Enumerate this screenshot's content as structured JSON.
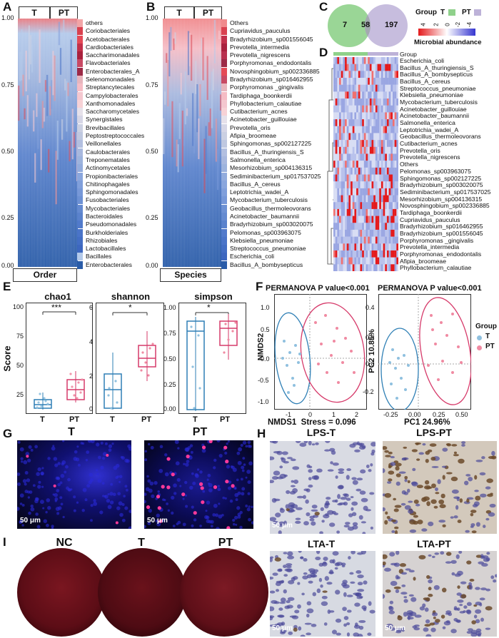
{
  "panels": {
    "A": "A",
    "B": "B",
    "C": "C",
    "D": "D",
    "E": "E",
    "F": "F",
    "G": "G",
    "H": "H",
    "I": "I"
  },
  "stack_axis_ticks": [
    "1.00",
    "0.75",
    "0.50",
    "0.25",
    "0.00"
  ],
  "group_headers": {
    "t": "T",
    "pt": "PT"
  },
  "panel_a": {
    "bottom_label": "Order",
    "legend": [
      "others",
      "Coriobacteriales",
      "Acetobacterales",
      "Cardiobacteriales",
      "Saccharimonadales",
      "Flavobacteriales",
      "Enterobacterales_A",
      "Selenomonadales",
      "Streptancytecales",
      "Campylobacterales",
      "Xanthomonadales",
      "Saccharomycetales",
      "Synergistales",
      "Brevibacillales",
      "Peptostreptococcales",
      "Veillonellales",
      "Caulobacterales",
      "Treponematales",
      "Actinomycetales",
      "Propionibacteriales",
      "Chitinophagales",
      "Sphingomonadales",
      "Fusobacteriales",
      "Mycobacteriales",
      "Bacteroidales",
      "Pseudomonadales",
      "Burkholderiales",
      "Rhizobiales",
      "Lactobacillales",
      "Bacillales",
      "Enterobacterales"
    ],
    "legend_colors": [
      "#f2a5a7",
      "#d9414f",
      "#e44a57",
      "#c2304a",
      "#a9213d",
      "#c84a64",
      "#9c2a47",
      "#e7b5bd",
      "#f5bcc5",
      "#f4c7cf",
      "#f7d2d6",
      "#e6e1ea",
      "#d6d6e6",
      "#cbd0e2",
      "#bfc8e0",
      "#b2bfe0",
      "#a8b8de",
      "#9db3dd",
      "#93acdd",
      "#8aa6dd",
      "#809fdb",
      "#7798d8",
      "#6d91d4",
      "#648ad0",
      "#5a82cc",
      "#517acb",
      "#4a74c8",
      "#436ec4",
      "#3d67bf",
      "#b3c9ea",
      "#2a5ca8"
    ]
  },
  "panel_b": {
    "bottom_label": "Species",
    "legend": [
      "Others",
      "Cupriavidus_pauculus",
      "Bradyrhizobium_sp001556045",
      "Prevotella_intermedia",
      "Prevotella_nigrescens",
      "Porphyromonas_endodontalis",
      "Novosphingobium_sp002336885",
      "Bradyrhizobium_sp016462955",
      "Porphyromonas _gingivalis",
      "Tardiphaga_boonkerdii",
      "Phyllobacterium_calautiae",
      "Cutibacterium_acnes",
      "Acinetobacter_guillouiae",
      "Prevotella_oris",
      "Afipia_broomeae",
      "Sphingomonas_sp002127225",
      "Bacillus_A_thuringiensis_S",
      "Salmonella_enterica",
      "Mesorhizobium_sp004136315",
      "Sediminibacterium_sp017537025",
      "Bacillus_A_cereus",
      "Leptotrichia_wadei_A",
      "Mycobacterium_tuberculosis",
      "Geobacillus_thermoleovorans",
      "Acinetobacter_baumannii",
      "Bradyrhizobium_sp003020075",
      "Pelomonas_sp003963075",
      "Klebsiella_pneumoniae",
      "Streptococcus_pneumoniae",
      "Escherichia_coli",
      "Bacillus_A_bombysepticus"
    ],
    "legend_colors": [
      "#f08a8c",
      "#d9414f",
      "#c2304a",
      "#a9213d",
      "#b8304e",
      "#9c2a47",
      "#e44a57",
      "#c84a64",
      "#e7b5bd",
      "#f5bcc5",
      "#f4c7cf",
      "#f7d2d6",
      "#e6e1ea",
      "#d6d6e6",
      "#cbd0e2",
      "#bfc8e0",
      "#b2bfe0",
      "#a8b8de",
      "#9db3dd",
      "#93acdd",
      "#8aa6dd",
      "#809fdb",
      "#7798d8",
      "#6d91d4",
      "#648ad0",
      "#5a82cc",
      "#517acb",
      "#4a74c8",
      "#436ec4",
      "#3d67bf",
      "#2a5ca8"
    ]
  },
  "panel_c": {
    "venn": {
      "t_only": "7",
      "both": "58",
      "pt_only": "197"
    },
    "legend_title": "Group",
    "group_t": "T",
    "group_pt": "PT",
    "color_ticks": [
      "4",
      "2",
      "0",
      "-2",
      "-4"
    ],
    "colorbar_label": "Microbial abundance"
  },
  "panel_d": {
    "group_label": "Group",
    "rows": [
      "Escherichia_coli",
      "Bacillus_A_thuringiensis_S",
      "Bacillus_A_bombysepticus",
      "Bacillus_A_cereus",
      "Streptococcus_pneumoniae",
      "Klebsiella_pneumoniae",
      "Mycobacterium_tuberculosis",
      "Acinetobacter_guillouiae",
      "Acinetobacter_baumannii",
      "Salmonella_enterica",
      "Leptotrichia_wadei_A",
      "Geobacillus_thermoleovorans",
      "Cutibacterium_acnes",
      "Prevotella_oris",
      "Prevotella_nigrescens",
      "Others",
      "Pelomonas_sp003963075",
      "Sphingomonas_sp002127225",
      "Bradyrhizobium_sp003020075",
      "Sediminibacterium_sp017537025",
      "Mesorhizobium_sp004136315",
      "Novosphingobium_sp002336885",
      "Tardiphaga_boonkerdii",
      "Cupriavidus_pauculus",
      "Bradyrhizobium_sp016462955",
      "Bradyrhizobium_sp001556045",
      "Porphyromonas _gingivalis",
      "Prevotella_intermedia",
      "Porphyromonas_endodontalis",
      "Afipia_broomeae",
      "Phyllobacterium_calautiae"
    ]
  },
  "panel_e": {
    "ylabel": "Score",
    "plots": [
      {
        "title": "chao1",
        "sig": "***",
        "yticks": [
          "100",
          "75",
          "50",
          "25"
        ],
        "cats": [
          "T",
          "PT"
        ]
      },
      {
        "title": "shannon",
        "sig": "*",
        "yticks": [
          "6",
          "4",
          "2",
          "0"
        ],
        "cats": [
          "T",
          "PT"
        ]
      },
      {
        "title": "simpson",
        "sig": "*",
        "yticks": [
          "1.00",
          "0.75",
          "0.50",
          "0.25",
          "0.00"
        ],
        "cats": [
          "T",
          "PT"
        ]
      }
    ]
  },
  "panel_f": {
    "left_title": "PERMANOVA P value<0.001",
    "right_title": "PERMANOVA P value<0.001",
    "left_ylabel": "NMDS2",
    "left_xlabel": "NMDS1  Stress = 0.096",
    "left_xticks": [
      "-1",
      "0",
      "1",
      "2"
    ],
    "left_yticks": [
      "1.0",
      "0.5",
      "0.0",
      "-0.5",
      "-1.0"
    ],
    "right_ylabel": "PC2 10.85%",
    "right_xlabel": "PC1 24.96%",
    "right_xticks": [
      "-0.25",
      "0.00",
      "0.25",
      "0.50"
    ],
    "right_yticks": [
      "0.4",
      "0.2",
      "0.0",
      "-0.2"
    ],
    "legend_title": "Group",
    "legend_t": "T",
    "legend_pt": "PT",
    "color_t": "#8fc0df",
    "color_pt": "#f08aa2"
  },
  "panel_g": {
    "t_title": "T",
    "pt_title": "PT",
    "scale": "50 μm"
  },
  "panel_h": {
    "lps_t": "LPS-T",
    "lps_pt": "LPS-PT",
    "lta_t": "LTA-T",
    "lta_pt": "LTA-PT",
    "scale": "50 μm"
  },
  "panel_i": {
    "nc": "NC",
    "t": "T",
    "pt": "PT"
  }
}
